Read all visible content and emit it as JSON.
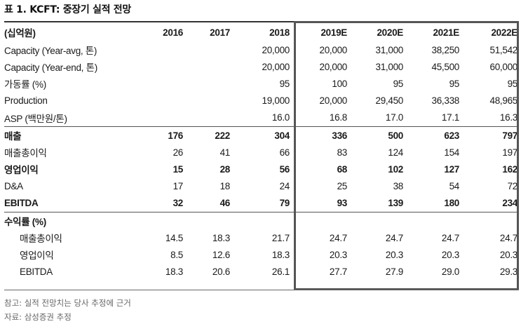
{
  "title": "표 1. KCFT: 중장기 실적 전망",
  "unit_label": "(십억원)",
  "columns": [
    "2016",
    "2017",
    "2018",
    "2019E",
    "2020E",
    "2021E",
    "2022E"
  ],
  "rows": [
    {
      "label": "Capacity (Year-avg, 톤)",
      "bold": false,
      "sub": false,
      "sep": false,
      "values": [
        "",
        "",
        "20,000",
        "20,000",
        "31,000",
        "38,250",
        "51,542"
      ]
    },
    {
      "label": "Capacity (Year-end, 톤)",
      "bold": false,
      "sub": false,
      "sep": false,
      "values": [
        "",
        "",
        "20,000",
        "20,000",
        "31,000",
        "45,500",
        "60,000"
      ]
    },
    {
      "label": "가동률 (%)",
      "bold": false,
      "sub": false,
      "sep": false,
      "values": [
        "",
        "",
        "95",
        "100",
        "95",
        "95",
        "95"
      ]
    },
    {
      "label": "Production",
      "bold": false,
      "sub": false,
      "sep": false,
      "values": [
        "",
        "",
        "19,000",
        "20,000",
        "29,450",
        "36,338",
        "48,965"
      ]
    },
    {
      "label": "ASP (백만원/톤)",
      "bold": false,
      "sub": false,
      "sep": false,
      "values": [
        "",
        "",
        "16.0",
        "16.8",
        "17.0",
        "17.1",
        "16.3"
      ]
    },
    {
      "label": "매출",
      "bold": true,
      "sub": false,
      "sep": true,
      "values": [
        "176",
        "222",
        "304",
        "336",
        "500",
        "623",
        "797"
      ]
    },
    {
      "label": "매출총이익",
      "bold": false,
      "sub": false,
      "sep": false,
      "values": [
        "26",
        "41",
        "66",
        "83",
        "124",
        "154",
        "197"
      ]
    },
    {
      "label": "영업이익",
      "bold": true,
      "sub": false,
      "sep": false,
      "values": [
        "15",
        "28",
        "56",
        "68",
        "102",
        "127",
        "162"
      ]
    },
    {
      "label": "D&A",
      "bold": false,
      "sub": false,
      "sep": false,
      "values": [
        "17",
        "18",
        "24",
        "25",
        "38",
        "54",
        "72"
      ]
    },
    {
      "label": "EBITDA",
      "bold": true,
      "sub": false,
      "sep": false,
      "values": [
        "32",
        "46",
        "79",
        "93",
        "139",
        "180",
        "234"
      ]
    },
    {
      "label": "수익률 (%)",
      "bold": true,
      "sub": false,
      "sep": true,
      "values": [
        "",
        "",
        "",
        "",
        "",
        "",
        ""
      ]
    },
    {
      "label": "매출총이익",
      "bold": false,
      "sub": true,
      "sep": false,
      "values": [
        "14.5",
        "18.3",
        "21.7",
        "24.7",
        "24.7",
        "24.7",
        "24.7"
      ]
    },
    {
      "label": "영업이익",
      "bold": false,
      "sub": true,
      "sep": false,
      "values": [
        "8.5",
        "12.6",
        "18.3",
        "20.3",
        "20.3",
        "20.3",
        "20.3"
      ]
    },
    {
      "label": "EBITDA",
      "bold": false,
      "sub": true,
      "sep": false,
      "values": [
        "18.3",
        "20.6",
        "26.1",
        "27.7",
        "27.9",
        "29.0",
        "29.3"
      ]
    }
  ],
  "notes": {
    "reference": "참고: 실적 전망치는 당사 추정에 근거",
    "source": "자료: 삼성증권 추정"
  }
}
